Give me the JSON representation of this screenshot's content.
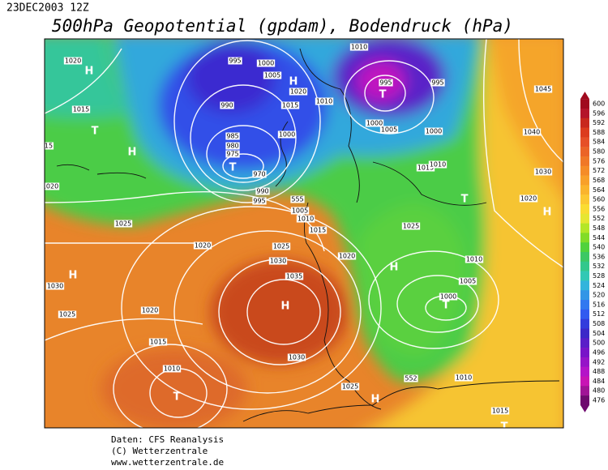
{
  "header": {
    "date": "23DEC2003 12Z",
    "title": "500hPa Geopotential (gpdam), Bodendruck (hPa)"
  },
  "colorbar": {
    "labels": [
      600,
      596,
      592,
      588,
      584,
      580,
      576,
      572,
      568,
      564,
      560,
      556,
      552,
      548,
      544,
      540,
      536,
      532,
      528,
      524,
      520,
      516,
      512,
      508,
      504,
      500,
      496,
      492,
      488,
      484,
      480,
      476
    ],
    "colors": [
      "#a00a1e",
      "#b4142a",
      "#c8281e",
      "#dc3c1e",
      "#e65028",
      "#eb6428",
      "#f07828",
      "#f58c28",
      "#f8a02a",
      "#fab42d",
      "#fcc832",
      "#fadc32",
      "#e6e632",
      "#b4e628",
      "#82dc28",
      "#50d23c",
      "#3cc864",
      "#32c88c",
      "#32c8b4",
      "#32b4dc",
      "#3296e6",
      "#3278f0",
      "#325af0",
      "#323cdc",
      "#3c28c8",
      "#5a1ec8",
      "#7814c8",
      "#9614c8",
      "#b414c8",
      "#c814b4",
      "#a01496",
      "#6e0a6e"
    ]
  },
  "isobar_labels": [
    "1020",
    "1015",
    "995",
    "1000",
    "1005",
    "1020",
    "1015",
    "1010",
    "990",
    "985",
    "980",
    "975",
    "970",
    "990",
    "995",
    "1000",
    "1010",
    "995",
    "995",
    "1000",
    "1005",
    "1000",
    "1015",
    "1010",
    "1045",
    "1040",
    "1020",
    "1030",
    "1020",
    "1025",
    "1020",
    "1025",
    "1030",
    "1035",
    "1015",
    "1010",
    "1005",
    "1020",
    "1025",
    "1010",
    "1005",
    "1000",
    "1030",
    "1025",
    "1020",
    "1015",
    "1010",
    "1030",
    "1025",
    "1010",
    "1015",
    "555",
    "552",
    "15"
  ],
  "pressure_centers": [
    "H",
    "T",
    "H",
    "T",
    "H",
    "T",
    "H",
    "H",
    "T",
    "H",
    "T",
    "H",
    "T",
    "H",
    "T"
  ],
  "footer": [
    "Daten: CFS Reanalysis",
    "(C) Wetterzentrale",
    "www.wetterzentrale.de"
  ]
}
